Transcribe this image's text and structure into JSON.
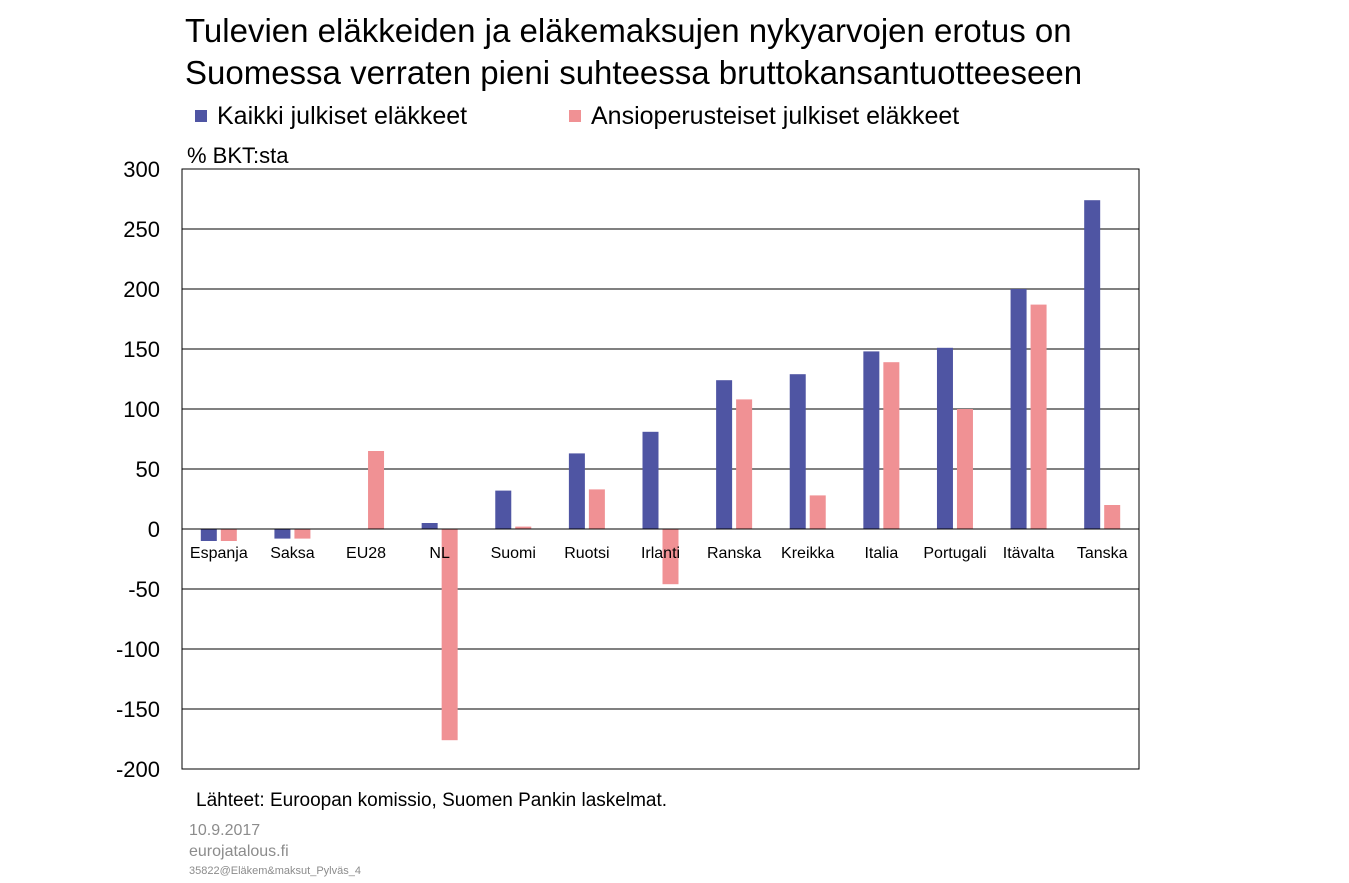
{
  "title_line1": "Tulevien eläkkeiden ja eläkemaksujen nykyarvojen erotus on",
  "title_line2": "Suomessa verraten pieni suhteessa bruttokansantuotteeseen",
  "unit_label": "% BKT:sta",
  "source": "Lähteet:  Euroopan komissio, Suomen Pankin laskelmat.",
  "footer": {
    "date": "10.9.2017",
    "site": "eurojatalous.fi",
    "code": "35822@Eläkem&maksut_Pylväs_4"
  },
  "colors": {
    "series1": "#4f55a3",
    "series2": "#f09194"
  },
  "chart_data": {
    "type": "bar",
    "title": "Tulevien eläkkeiden ja eläkemaksujen nykyarvojen erotus on Suomessa verraten pieni suhteessa bruttokansantuotteeseen",
    "ylabel": "% BKT:sta",
    "xlabel": "",
    "ylim": [
      -200,
      300
    ],
    "yticks": [
      300,
      250,
      200,
      150,
      100,
      50,
      0,
      -50,
      -100,
      -150,
      -200
    ],
    "grid": true,
    "legend_position": "top",
    "categories": [
      "Espanja",
      "Saksa",
      "EU28",
      "NL",
      "Suomi",
      "Ruotsi",
      "Irlanti",
      "Ranska",
      "Kreikka",
      "Italia",
      "Portugali",
      "Itävalta",
      "Tanska"
    ],
    "series": [
      {
        "name": "Kaikki julkiset eläkkeet",
        "color": "#4f55a3",
        "values": [
          -10,
          -8,
          null,
          5,
          32,
          63,
          81,
          124,
          129,
          148,
          151,
          200,
          274
        ]
      },
      {
        "name": "Ansioperusteiset julkiset eläkkeet",
        "color": "#f09194",
        "values": [
          -10,
          -8,
          65,
          -176,
          2,
          33,
          -46,
          108,
          28,
          139,
          100,
          187,
          20
        ]
      }
    ]
  }
}
